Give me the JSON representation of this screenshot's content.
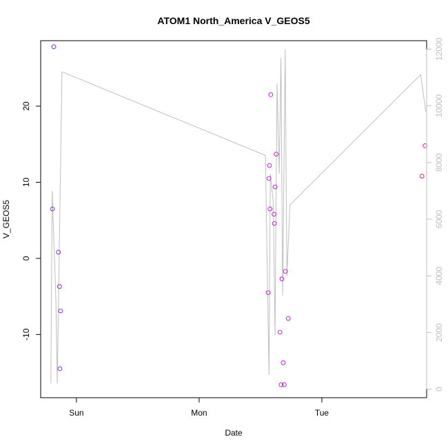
{
  "chart_data": {
    "type": "scatter",
    "title": "ATOM1 North_America V_GEOS5",
    "xlabel": "Date",
    "ylabel": "V_GEOS5",
    "xlim": [
      "2016-07-30T17:00",
      "2016-08-02T20:30"
    ],
    "ylim": [
      -18.3,
      28.6
    ],
    "x_ticks": [
      {
        "x": "2016-07-31T00:00",
        "label": "Sun"
      },
      {
        "x": "2016-08-01T00:00",
        "label": "Mon"
      },
      {
        "x": "2016-08-02T00:00",
        "label": "Tue"
      }
    ],
    "y_ticks": [
      -10,
      0,
      10,
      20
    ],
    "y2lim": [
      -300,
      12300
    ],
    "y2_ticks": [
      0,
      2000,
      4000,
      6000,
      8000,
      10000,
      12000
    ],
    "grid": false,
    "points": [
      {
        "x": "2016-07-30T19:18",
        "y": 6.5,
        "color": "#8a2be2"
      },
      {
        "x": "2016-07-30T19:34",
        "y": 27.8,
        "color": "#8a2be2"
      },
      {
        "x": "2016-07-30T20:28",
        "y": 0.8,
        "color": "#8a2be2"
      },
      {
        "x": "2016-07-30T20:41",
        "y": -3.7,
        "color": "#8a2be2"
      },
      {
        "x": "2016-07-30T20:46",
        "y": -14.5,
        "color": "#8a2be2"
      },
      {
        "x": "2016-07-30T20:53",
        "y": -6.9,
        "color": "#8a2be2"
      },
      {
        "x": "2016-08-01T13:30",
        "y": -4.5,
        "color": "#c81ee6"
      },
      {
        "x": "2016-08-01T13:38",
        "y": 10.5,
        "color": "#c81ee6"
      },
      {
        "x": "2016-08-01T13:45",
        "y": 12.2,
        "color": "#c81ee6"
      },
      {
        "x": "2016-08-01T13:51",
        "y": 6.5,
        "color": "#c81ee6"
      },
      {
        "x": "2016-08-01T14:00",
        "y": 21.5,
        "color": "#c81ee6"
      },
      {
        "x": "2016-08-01T14:38",
        "y": 5.8,
        "color": "#c81ee6"
      },
      {
        "x": "2016-08-01T14:43",
        "y": 4.6,
        "color": "#c81ee6"
      },
      {
        "x": "2016-08-01T14:51",
        "y": 9.4,
        "color": "#c81ee6"
      },
      {
        "x": "2016-08-01T15:04",
        "y": 13.7,
        "color": "#c81ee6"
      },
      {
        "x": "2016-08-01T15:49",
        "y": -9.7,
        "color": "#c81ee6"
      },
      {
        "x": "2016-08-01T16:02",
        "y": -16.6,
        "color": "#c81ee6"
      },
      {
        "x": "2016-08-01T16:11",
        "y": -2.7,
        "color": "#c81ee6"
      },
      {
        "x": "2016-08-01T16:27",
        "y": -13.7,
        "color": "#c81ee6"
      },
      {
        "x": "2016-08-01T16:39",
        "y": -16.6,
        "color": "#c81ee6"
      },
      {
        "x": "2016-08-01T16:52",
        "y": -1.7,
        "color": "#c81ee6"
      },
      {
        "x": "2016-08-01T17:26",
        "y": -7.9,
        "color": "#c81ee6"
      },
      {
        "x": "2016-08-02T19:35",
        "y": 10.8,
        "color": "#e6149b"
      },
      {
        "x": "2016-08-02T20:11",
        "y": 14.8,
        "color": "#e6149b"
      }
    ],
    "line_series": {
      "axis": "right",
      "color": "#bebebe",
      "points": [
        {
          "x": "2016-07-30T19:00",
          "y2": 200
        },
        {
          "x": "2016-07-30T19:15",
          "y2": 7000
        },
        {
          "x": "2016-07-30T20:00",
          "y2": 3000
        },
        {
          "x": "2016-07-30T20:15",
          "y2": 200
        },
        {
          "x": "2016-07-30T21:10",
          "y2": 11200
        },
        {
          "x": "2016-08-01T12:58",
          "y2": 8250
        },
        {
          "x": "2016-08-01T13:40",
          "y2": 500
        },
        {
          "x": "2016-08-01T13:55",
          "y2": 7600
        },
        {
          "x": "2016-08-01T14:30",
          "y2": 6600
        },
        {
          "x": "2016-08-01T14:50",
          "y2": 1900
        },
        {
          "x": "2016-08-01T15:15",
          "y2": 10800
        },
        {
          "x": "2016-08-01T15:40",
          "y2": 7600
        },
        {
          "x": "2016-08-01T16:00",
          "y2": 11700
        },
        {
          "x": "2016-08-01T16:20",
          "y2": 3300
        },
        {
          "x": "2016-08-01T16:50",
          "y2": 12000
        },
        {
          "x": "2016-08-01T17:10",
          "y2": 4000
        },
        {
          "x": "2016-08-01T17:45",
          "y2": 6500
        },
        {
          "x": "2016-08-02T19:20",
          "y2": 11100
        },
        {
          "x": "2016-08-02T20:20",
          "y2": 9800
        }
      ]
    }
  }
}
